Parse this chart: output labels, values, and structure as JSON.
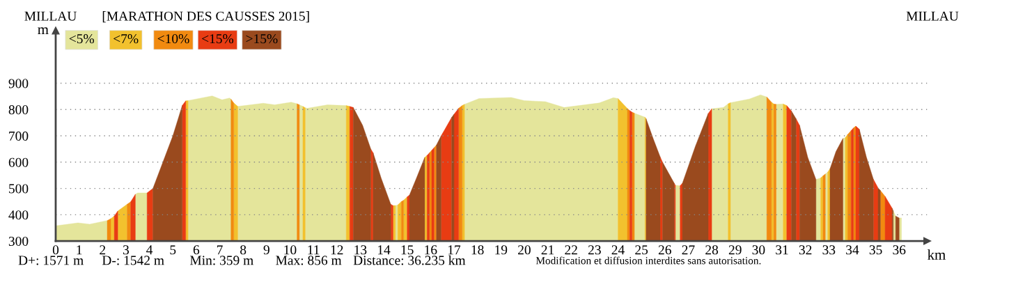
{
  "chart_data": {
    "type": "area",
    "title": "[MARATHON DES CAUSSES 2015]",
    "xlabel": "km",
    "ylabel": "m",
    "annotations": [
      "MILLAU",
      "MILLAU",
      "D+: 1571 m",
      "D-: 1542 m",
      "Min: 359 m",
      "Max: 856 m",
      "Distance: 36.235 km",
      "Modification et diffusion interdites sans autorisation."
    ],
    "xlim": [
      0,
      37.2
    ],
    "ylim": [
      300,
      1100
    ],
    "xticks": [
      0,
      1,
      2,
      3,
      4,
      5,
      6,
      7,
      8,
      9,
      10,
      11,
      12,
      13,
      14,
      15,
      16,
      17,
      18,
      19,
      20,
      21,
      22,
      23,
      24,
      25,
      26,
      27,
      28,
      29,
      30,
      31,
      32,
      33,
      34,
      35,
      36
    ],
    "yticks": [
      300,
      400,
      500,
      600,
      700,
      800,
      900
    ],
    "grid": "y",
    "legend": "top left",
    "series": [
      {
        "name": "<5%",
        "color": "#e4e59b",
        "x": [
          0,
          0.95,
          1.45,
          2.2,
          null,
          3.4,
          3.5,
          3.9,
          null,
          5.65,
          6.68,
          7.1,
          7.42,
          7.48,
          null,
          7.77,
          8.86,
          9.35,
          10.05,
          10.3,
          null,
          10.4,
          10.55,
          null,
          10.65,
          10.74,
          11.6,
          12.4,
          null,
          14.5,
          14.6,
          null,
          17.45,
          18.07,
          19.44,
          20.0,
          20.9,
          21.7,
          23.2,
          23.8,
          24.0,
          null,
          24.7,
          25.15,
          null,
          26.45,
          26.65,
          null,
          28.0,
          28.5,
          28.7,
          null,
          28.8,
          29.6,
          30.08,
          30.35,
          null,
          30.75,
          31.05,
          null,
          32.45,
          32.65,
          null,
          32.85,
          32.95,
          null,
          33.6,
          33.7,
          null,
          35.75,
          35.85,
          null,
          36.0,
          36.1
        ],
        "values": [
          358,
          369,
          364,
          378,
          null,
          478,
          483,
          483,
          null,
          834,
          852,
          837,
          844,
          840,
          null,
          812,
          824,
          818,
          828,
          822,
          null,
          818,
          812,
          null,
          807,
          805,
          818,
          815,
          null,
          435,
          437,
          null,
          820,
          842,
          846,
          834,
          830,
          808,
          825,
          845,
          842,
          null,
          786,
          771,
          null,
          512,
          510,
          null,
          803,
          808,
          822,
          null,
          826,
          840,
          856,
          848,
          null,
          820,
          821,
          null,
          534,
          540,
          null,
          555,
          562,
          null,
          690,
          693,
          null,
          415,
          395,
          null,
          388,
          388
        ]
      },
      {
        "name": "<7%",
        "color": "#f2c12e",
        "x": [
          2.35,
          2.5,
          null,
          2.65,
          3.05,
          null,
          5.55,
          5.65,
          null,
          7.6,
          7.77,
          null,
          10.55,
          10.65,
          null,
          12.4,
          12.55,
          null,
          14.4,
          14.5,
          null,
          14.6,
          14.75,
          null,
          14.85,
          15.0,
          null,
          15.75,
          15.85,
          null,
          17.35,
          17.45,
          null,
          24.0,
          24.4,
          null,
          25.15,
          25.2,
          null,
          28.7,
          28.8,
          null,
          30.55,
          30.65,
          null,
          31.05,
          31.2,
          null,
          32.65,
          32.75,
          null,
          32.95,
          33.05,
          null,
          33.7,
          33.8
        ],
        "values": [
          385,
          395,
          null,
          414,
          440,
          null,
          833,
          834,
          null,
          825,
          812,
          null,
          812,
          807,
          null,
          815,
          812,
          null,
          435,
          435,
          null,
          437,
          450,
          null,
          455,
          468,
          null,
          618,
          625,
          null,
          815,
          820,
          null,
          842,
          804,
          null,
          771,
          765,
          null,
          822,
          826,
          null,
          828,
          821,
          null,
          821,
          815,
          null,
          540,
          548,
          null,
          562,
          575,
          null,
          693,
          705
        ]
      },
      {
        "name": "<10%",
        "color": "#f18a10",
        "x": [
          2.2,
          2.35,
          null,
          3.05,
          3.2,
          null,
          7.48,
          7.6,
          null,
          10.3,
          10.4,
          null,
          14.75,
          14.85,
          null,
          15.95,
          16.05,
          null,
          16.15,
          16.25,
          null,
          17.2,
          17.35,
          null,
          24.4,
          24.5,
          null,
          24.6,
          24.7,
          null,
          30.35,
          30.55,
          null,
          30.65,
          30.75,
          null,
          32.75,
          32.85,
          null,
          33.8,
          33.95,
          null,
          34.05,
          34.15,
          null,
          35.2,
          35.4
        ],
        "values": [
          378,
          385,
          null,
          440,
          449,
          null,
          840,
          825,
          null,
          822,
          818,
          null,
          450,
          455,
          null,
          635,
          645,
          null,
          655,
          665,
          null,
          805,
          815,
          null,
          804,
          796,
          null,
          790,
          786,
          null,
          848,
          828,
          null,
          821,
          820,
          null,
          548,
          555,
          null,
          705,
          720,
          null,
          730,
          737,
          null,
          492,
          470
        ]
      },
      {
        "name": "<15%",
        "color": "#e83c13",
        "x": [
          2.5,
          2.65,
          null,
          3.2,
          3.4,
          null,
          3.9,
          4.15,
          null,
          5.4,
          5.55,
          null,
          12.55,
          12.7,
          null,
          13.45,
          13.55,
          null,
          14.3,
          14.4,
          null,
          15.0,
          15.1,
          null,
          15.85,
          15.95,
          null,
          16.05,
          16.15,
          null,
          16.45,
          16.6,
          16.9,
          null,
          17.0,
          17.2,
          null,
          24.5,
          24.6,
          null,
          25.8,
          25.9,
          null,
          26.4,
          26.45,
          null,
          26.65,
          26.75,
          null,
          27.85,
          28.0,
          null,
          31.2,
          31.4,
          null,
          31.6,
          31.75,
          null,
          33.95,
          34.05,
          null,
          34.15,
          34.3,
          null,
          34.9,
          35.1,
          null,
          35.4,
          35.7
        ],
        "values": [
          395,
          414,
          null,
          449,
          478,
          null,
          483,
          500,
          null,
          815,
          833,
          null,
          812,
          808,
          null,
          650,
          635,
          null,
          440,
          435,
          null,
          468,
          475,
          null,
          625,
          635,
          null,
          645,
          655,
          null,
          700,
          723,
          770,
          null,
          782,
          805,
          null,
          796,
          790,
          null,
          620,
          600,
          null,
          520,
          512,
          null,
          510,
          520,
          null,
          785,
          803,
          null,
          815,
          795,
          null,
          765,
          740,
          null,
          720,
          730,
          null,
          737,
          725,
          null,
          535,
          502,
          null,
          470,
          425
        ]
      },
      {
        "name": ">15%",
        "color": "#9a4a1e",
        "x": [
          4.15,
          5.0,
          5.4,
          null,
          12.7,
          13.1,
          13.45,
          null,
          13.55,
          13.9,
          14.3,
          null,
          15.1,
          15.4,
          15.75,
          null,
          16.25,
          16.45,
          null,
          16.9,
          17.0,
          null,
          25.2,
          25.5,
          25.8,
          null,
          25.9,
          26.4,
          null,
          26.75,
          27.3,
          27.85,
          null,
          31.4,
          31.6,
          null,
          31.75,
          32.1,
          32.45,
          null,
          33.05,
          33.3,
          33.6,
          null,
          34.3,
          34.6,
          34.9,
          null,
          35.1,
          35.2,
          null,
          35.7,
          35.75,
          null,
          35.85,
          36.0
        ],
        "values": [
          500,
          700,
          815,
          null,
          808,
          740,
          650,
          null,
          635,
          537,
          440,
          null,
          475,
          540,
          618,
          null,
          665,
          700,
          null,
          770,
          782,
          null,
          765,
          690,
          620,
          null,
          600,
          520,
          null,
          520,
          660,
          785,
          null,
          795,
          765,
          null,
          740,
          618,
          534,
          null,
          575,
          640,
          690,
          null,
          725,
          620,
          535,
          null,
          502,
          492,
          null,
          425,
          415,
          null,
          395,
          388
        ]
      }
    ]
  }
}
